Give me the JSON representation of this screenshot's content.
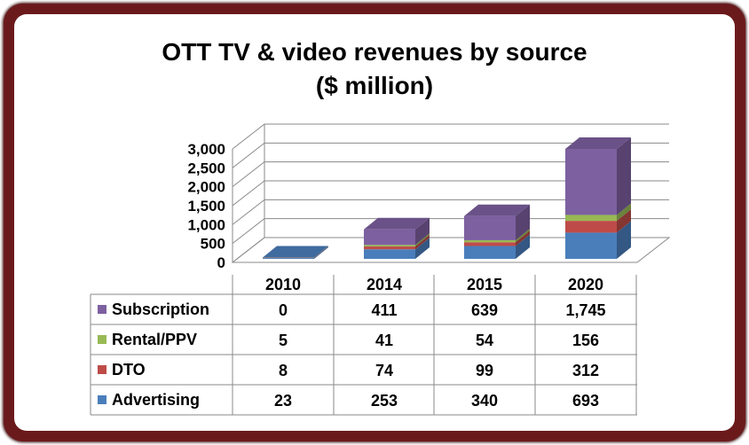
{
  "chart_data": {
    "type": "bar",
    "stacked": true,
    "three_d": true,
    "title": [
      "OTT TV & video revenues by source",
      "($ million)"
    ],
    "categories": [
      "2010",
      "2014",
      "2015",
      "2020"
    ],
    "y_ticks": [
      "3,000",
      "2,500",
      "2,000",
      "1,500",
      "1,000",
      "500",
      "0"
    ],
    "ylim": [
      0,
      3000
    ],
    "grid": true,
    "legend": "data-table",
    "series": [
      {
        "name": "Advertising",
        "color": "#4a7ebb",
        "values": [
          23,
          253,
          340,
          693
        ],
        "labels": [
          "23",
          "253",
          "340",
          "693"
        ]
      },
      {
        "name": "DTO",
        "color": "#be4b48",
        "values": [
          8,
          74,
          99,
          312
        ],
        "labels": [
          "8",
          "74",
          "99",
          "312"
        ]
      },
      {
        "name": "Rental/PPV",
        "color": "#98b954",
        "values": [
          5,
          41,
          54,
          156
        ],
        "labels": [
          "5",
          "41",
          "54",
          "156"
        ]
      },
      {
        "name": "Subscription",
        "color": "#7d60a0",
        "values": [
          0,
          411,
          639,
          1745
        ],
        "labels": [
          "0",
          "411",
          "639",
          "1,745"
        ]
      }
    ]
  }
}
